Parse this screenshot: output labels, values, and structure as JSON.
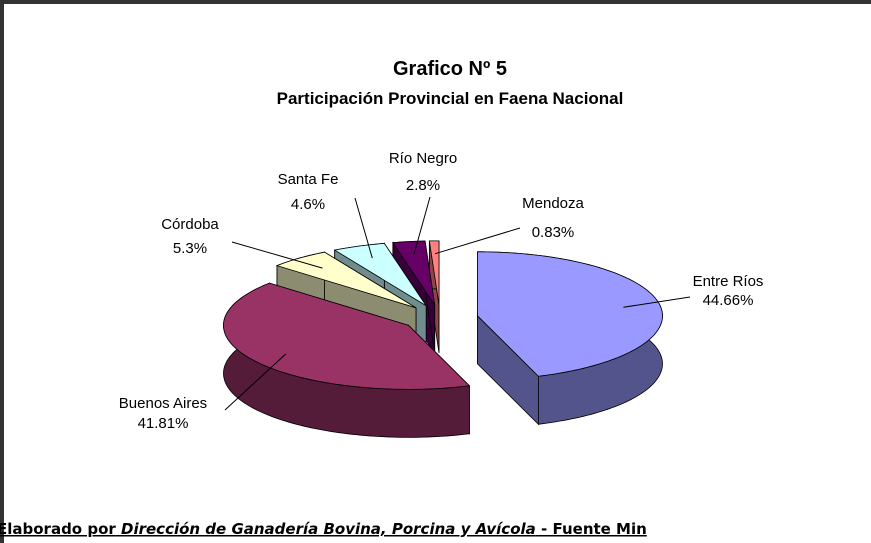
{
  "chart_data": {
    "type": "pie",
    "title": "Grafico Nº 5",
    "subtitle": "Participación Provincial en Faena Nacional",
    "categories": [
      "Entre Ríos",
      "Buenos Aires",
      "Córdoba",
      "Santa Fe",
      "Río Negro",
      "Mendoza"
    ],
    "values": [
      44.66,
      41.81,
      5.3,
      4.6,
      2.8,
      0.83
    ],
    "value_labels": [
      "44.66%",
      "41.81%",
      "5.3%",
      "4.6%",
      "2.8%",
      "0.83%"
    ],
    "colors": [
      "#9999ff",
      "#993366",
      "#ffffcc",
      "#ccffff",
      "#660066",
      "#ff8080"
    ]
  },
  "footer": {
    "prefix": "Elaborado por",
    "source": "Dirección de Ganadería Bovina, Porcina y Avícola",
    "suffix": "- Fuente Min"
  }
}
